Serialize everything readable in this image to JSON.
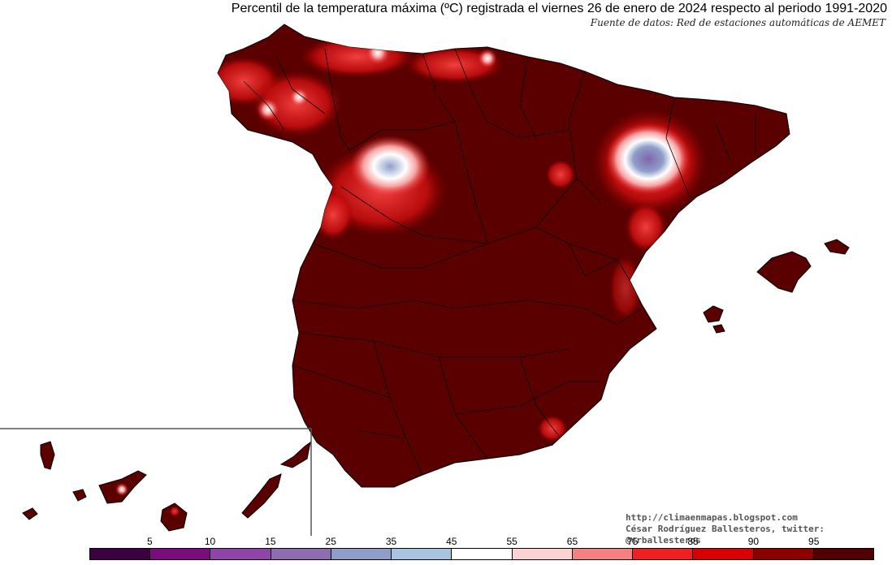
{
  "header": {
    "title": "Percentil de la temperatura máxima (ºC) registrada el viernes 26 de enero de 2024 respecto al periodo 1991-2020",
    "source": "Fuente de datos: Red de estaciones automáticas de AEMET"
  },
  "credits": {
    "url": "http://climaenmapas.blogspot.com",
    "author": "César Rodríguez Ballesteros, twitter: @crballesteros"
  },
  "legend": {
    "labels": [
      "5",
      "10",
      "15",
      "25",
      "35",
      "45",
      "55",
      "65",
      "75",
      "85",
      "90",
      "95"
    ],
    "colors": [
      "#3d0040",
      "#7a0c7e",
      "#8e44a8",
      "#8d6cb0",
      "#8f9ec8",
      "#a8c4e0",
      "#ffffff",
      "#fcd2d2",
      "#f48080",
      "#f02020",
      "#d80000",
      "#8c0000",
      "#500000"
    ]
  },
  "map": {
    "base_color": "#5a0000",
    "border_color": "#000000",
    "anomaly_colors": {
      "red": "#e81818",
      "pink": "#f7a3a3",
      "white": "#ffffff",
      "blue": "#8e9ec8",
      "purple": "#7f66ad"
    }
  }
}
